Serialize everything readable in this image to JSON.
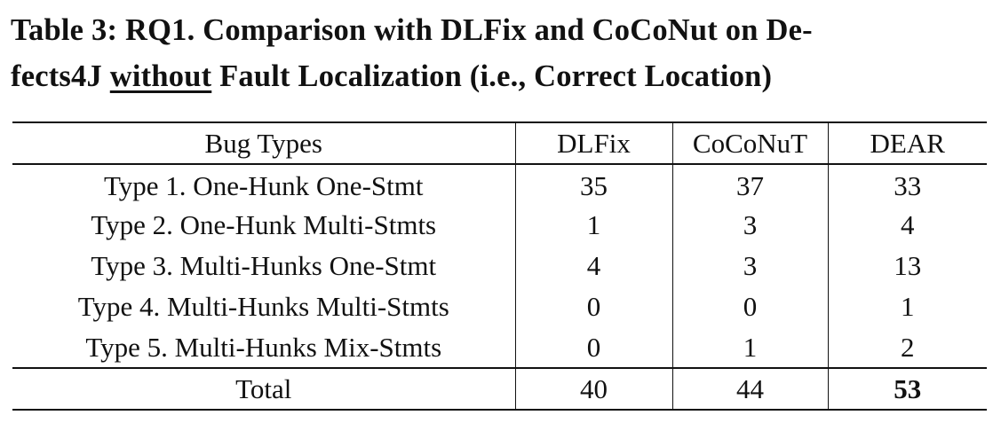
{
  "caption": {
    "line1": "Table 3: RQ1. Comparison with DLFix and CoCoNut on De-",
    "line2_before": "fects4J ",
    "line2_underlined": "without",
    "line2_after": " Fault Localization (i.e., Correct Location)"
  },
  "table": {
    "headers": [
      "Bug Types",
      "DLFix",
      "CoCoNuT",
      "DEAR"
    ],
    "rows": [
      [
        "Type 1. One-Hunk One-Stmt",
        "35",
        "37",
        "33"
      ],
      [
        "Type 2. One-Hunk Multi-Stmts",
        "1",
        "3",
        "4"
      ],
      [
        "Type 3. Multi-Hunks One-Stmt",
        "4",
        "3",
        "13"
      ],
      [
        "Type 4. Multi-Hunks Multi-Stmts",
        "0",
        "0",
        "1"
      ],
      [
        "Type 5. Multi-Hunks Mix-Stmts",
        "0",
        "1",
        "2"
      ]
    ],
    "total": [
      "Total",
      "40",
      "44",
      "53"
    ],
    "bold_cells": [
      "total.3"
    ]
  }
}
